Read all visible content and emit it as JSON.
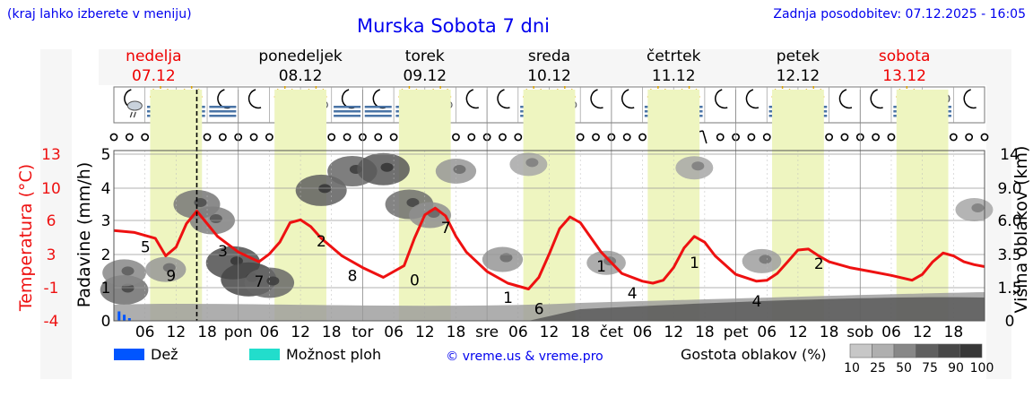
{
  "header": {
    "hint": "(kraj lahko izberete v meniju)",
    "title": "Murska Sobota 7 dni",
    "updated": "Zadnja posodobitev: 07.12.2025 - 16:05"
  },
  "days": [
    {
      "name": "nedelja",
      "date": "07.12",
      "weekend": true
    },
    {
      "name": "ponedeljek",
      "date": "08.12",
      "weekend": false
    },
    {
      "name": "torek",
      "date": "09.12",
      "weekend": false
    },
    {
      "name": "sreda",
      "date": "10.12",
      "weekend": false
    },
    {
      "name": "četrtek",
      "date": "11.12",
      "weekend": false
    },
    {
      "name": "petek",
      "date": "12.12",
      "weekend": false
    },
    {
      "name": "sobota",
      "date": "13.12",
      "weekend": true
    }
  ],
  "colors": {
    "temperature": "#ee1111",
    "rain": "#0055ff",
    "storm": "#22ddcc",
    "daylight": "#eef5c0",
    "weekend": "#ee0000",
    "link": "#0000ee"
  },
  "icons": [
    "moon-cloud-rain-icon",
    "sun-fog-icon",
    "sun-fog-icon",
    "moon-fog-icon",
    "moon-icon",
    "sun-cloud-icon",
    "sun-cloud-icon",
    "moon-fog-icon",
    "moon-fog-icon",
    "sun-fog-icon",
    "sun-cloud-icon",
    "moon-icon",
    "moon-icon",
    "sun-fog-icon",
    "sun-cloud-icon",
    "moon-icon",
    "moon-icon",
    "sun-fog-icon",
    "sun-fog-icon",
    "moon-icon",
    "moon-icon",
    "sun-fog-icon",
    "sun-fog-icon",
    "moon-icon",
    "moon-icon",
    "sun-fog-icon",
    "cloud-fog-icon",
    "moon-icon"
  ],
  "chart_data": {
    "type": "line",
    "title": "Murska Sobota 7 dni",
    "x_unit": "hours from 07.12 00:00",
    "xlim": [
      0,
      168
    ],
    "now_hour": 16,
    "xtick_labels": [
      "06",
      "12",
      "18",
      "pon",
      "06",
      "12",
      "18",
      "tor",
      "06",
      "12",
      "18",
      "sre",
      "06",
      "12",
      "18",
      "čet",
      "06",
      "12",
      "18",
      "pet",
      "06",
      "12",
      "18",
      "sob",
      "06",
      "12",
      "18"
    ],
    "y_left_labels": {
      "temperature": "Temperatura (°C)",
      "precipitation": "Padavine (mm/h)"
    },
    "y_right_label": "Višina oblakov (km)",
    "temperature_ticks": [
      "13",
      "10",
      "6",
      "3",
      "-1",
      "-4"
    ],
    "precip_ticks": [
      "5",
      "4",
      "3",
      "2",
      "1",
      "0"
    ],
    "cloud_height_ticks": [
      "14",
      "9.0",
      "6.0",
      "3.5",
      "1.5",
      "0"
    ],
    "temperature_ylim": [
      -4,
      13
    ],
    "series": [
      {
        "name": "Temperatura",
        "x": [
          0,
          4,
          8,
          10,
          12,
          14,
          16,
          20,
          24,
          28,
          30,
          32,
          34,
          36,
          38,
          40,
          44,
          48,
          52,
          56,
          58,
          60,
          62,
          64,
          66,
          68,
          72,
          76,
          80,
          82,
          84,
          86,
          88,
          90,
          94,
          98,
          102,
          104,
          106,
          108,
          110,
          112,
          114,
          116,
          120,
          124,
          126,
          128,
          130,
          132,
          134,
          136,
          138,
          142,
          146,
          150,
          154,
          156,
          158,
          160,
          162,
          164,
          166,
          168
        ],
        "values": [
          4.8,
          4.6,
          4.0,
          2.2,
          3.1,
          5.5,
          6.8,
          4.2,
          2.6,
          1.6,
          2.4,
          3.6,
          5.6,
          5.9,
          5.2,
          4.0,
          2.2,
          1.0,
          0.0,
          1.2,
          4.0,
          6.4,
          7.1,
          6.3,
          4.2,
          2.6,
          0.6,
          -0.6,
          -1.2,
          0.0,
          2.4,
          5.0,
          6.2,
          5.6,
          2.6,
          0.4,
          -0.4,
          -0.6,
          -0.3,
          1.0,
          3.0,
          4.2,
          3.6,
          2.2,
          0.3,
          -0.4,
          -0.3,
          0.4,
          1.6,
          2.8,
          2.9,
          2.2,
          1.6,
          1.0,
          0.6,
          0.2,
          -0.3,
          0.3,
          1.6,
          2.5,
          2.2,
          1.6,
          1.3,
          1.1
        ]
      }
    ],
    "point_labels": [
      {
        "hour": 3,
        "text": "5"
      },
      {
        "hour": 10,
        "text": "9"
      },
      {
        "hour": 20,
        "text": "3"
      },
      {
        "hour": 27,
        "text": "7"
      },
      {
        "hour": 39,
        "text": "2"
      },
      {
        "hour": 45,
        "text": "8"
      },
      {
        "hour": 57,
        "text": "0"
      },
      {
        "hour": 63,
        "text": "7"
      },
      {
        "hour": 75,
        "text": "1"
      },
      {
        "hour": 81,
        "text": "6"
      },
      {
        "hour": 93,
        "text": "1"
      },
      {
        "hour": 99,
        "text": "4"
      },
      {
        "hour": 111,
        "text": "1"
      },
      {
        "hour": 123,
        "text": "4"
      },
      {
        "hour": 135,
        "text": "2"
      }
    ],
    "cloud_blobs": [
      {
        "hour": 2,
        "km": 1.4,
        "density": 65
      },
      {
        "hour": 2,
        "km": 2.4,
        "density": 50
      },
      {
        "hour": 10,
        "km": 2.6,
        "density": 40
      },
      {
        "hour": 16,
        "km": 7.5,
        "density": 60
      },
      {
        "hour": 19,
        "km": 6.0,
        "density": 55
      },
      {
        "hour": 23,
        "km": 3.0,
        "density": 85
      },
      {
        "hour": 26,
        "km": 2.0,
        "density": 90
      },
      {
        "hour": 30,
        "km": 1.8,
        "density": 70
      },
      {
        "hour": 40,
        "km": 8.8,
        "density": 75
      },
      {
        "hour": 46,
        "km": 11.5,
        "density": 70
      },
      {
        "hour": 52,
        "km": 11.8,
        "density": 80
      },
      {
        "hour": 57,
        "km": 7.5,
        "density": 65
      },
      {
        "hour": 61,
        "km": 6.5,
        "density": 45
      },
      {
        "hour": 66,
        "km": 11.5,
        "density": 40
      },
      {
        "hour": 75,
        "km": 3.2,
        "density": 40
      },
      {
        "hour": 80,
        "km": 12.5,
        "density": 30
      },
      {
        "hour": 95,
        "km": 3.0,
        "density": 35
      },
      {
        "hour": 112,
        "km": 12.0,
        "density": 30
      },
      {
        "hour": 125,
        "km": 3.1,
        "density": 35
      },
      {
        "hour": 166,
        "km": 7.0,
        "density": 30
      }
    ],
    "rain_bars": [
      {
        "hour": 1,
        "mm": 0.28
      },
      {
        "hour": 2,
        "mm": 0.18
      },
      {
        "hour": 3,
        "mm": 0.08
      }
    ]
  },
  "legend": {
    "rain": "Dež",
    "storm": "Možnost ploh",
    "credit": "© vreme.us & vreme.pro",
    "density_label": "Gostota oblakov (%)",
    "density_values": [
      "10",
      "25",
      "50",
      "75",
      "90",
      "100"
    ]
  }
}
